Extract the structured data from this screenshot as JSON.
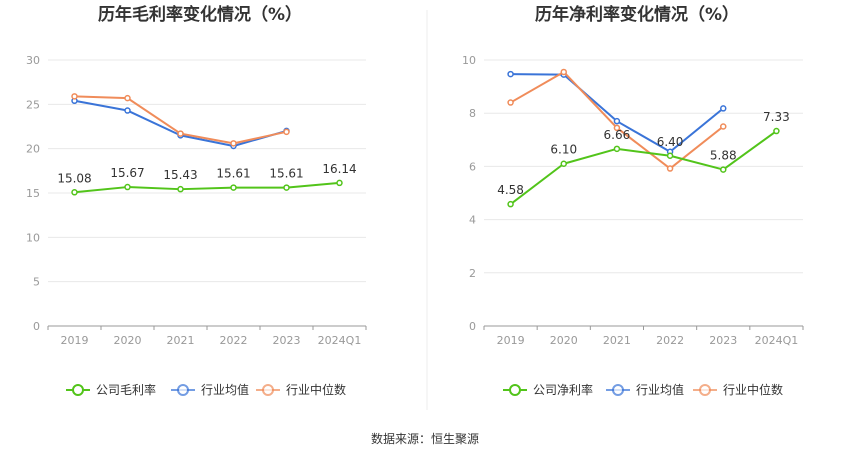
{
  "chart_data": [
    {
      "type": "line",
      "title": "历年毛利率变化情况（%）",
      "categories": [
        "2019",
        "2020",
        "2021",
        "2022",
        "2023",
        "2024Q1"
      ],
      "ylim": [
        0,
        30
      ],
      "yticks": [
        0,
        5,
        10,
        15,
        20,
        25,
        30
      ],
      "grid": true,
      "legend_position": "bottom",
      "series": [
        {
          "name": "公司毛利率",
          "color": "#52c41a",
          "values": [
            15.08,
            15.67,
            15.43,
            15.61,
            15.61,
            16.14
          ],
          "labels": [
            "15.08",
            "15.67",
            "15.43",
            "15.61",
            "15.61",
            "16.14"
          ]
        },
        {
          "name": "行业均值",
          "color": "#3a74d8",
          "values": [
            25.4,
            24.3,
            21.5,
            20.3,
            22.0,
            null
          ]
        },
        {
          "name": "行业中位数",
          "color": "#f08c5a",
          "values": [
            25.9,
            25.7,
            21.7,
            20.6,
            21.9,
            null
          ]
        }
      ]
    },
    {
      "type": "line",
      "title": "历年净利率变化情况（%）",
      "categories": [
        "2019",
        "2020",
        "2021",
        "2022",
        "2023",
        "2024Q1"
      ],
      "ylim": [
        0,
        10
      ],
      "yticks": [
        0,
        2,
        4,
        6,
        8,
        10
      ],
      "grid": true,
      "legend_position": "bottom",
      "series": [
        {
          "name": "公司净利率",
          "color": "#52c41a",
          "values": [
            4.58,
            6.1,
            6.66,
            6.4,
            5.88,
            7.33
          ],
          "labels": [
            "4.58",
            "6.10",
            "6.66",
            "6.40",
            "5.88",
            "7.33"
          ]
        },
        {
          "name": "行业均值",
          "color": "#3a74d8",
          "values": [
            9.47,
            9.45,
            7.7,
            6.55,
            8.18,
            null
          ]
        },
        {
          "name": "行业中位数",
          "color": "#f08c5a",
          "values": [
            8.4,
            9.55,
            7.45,
            5.92,
            7.5,
            null
          ]
        }
      ]
    }
  ],
  "footer": {
    "source": "数据来源：恒生聚源"
  }
}
